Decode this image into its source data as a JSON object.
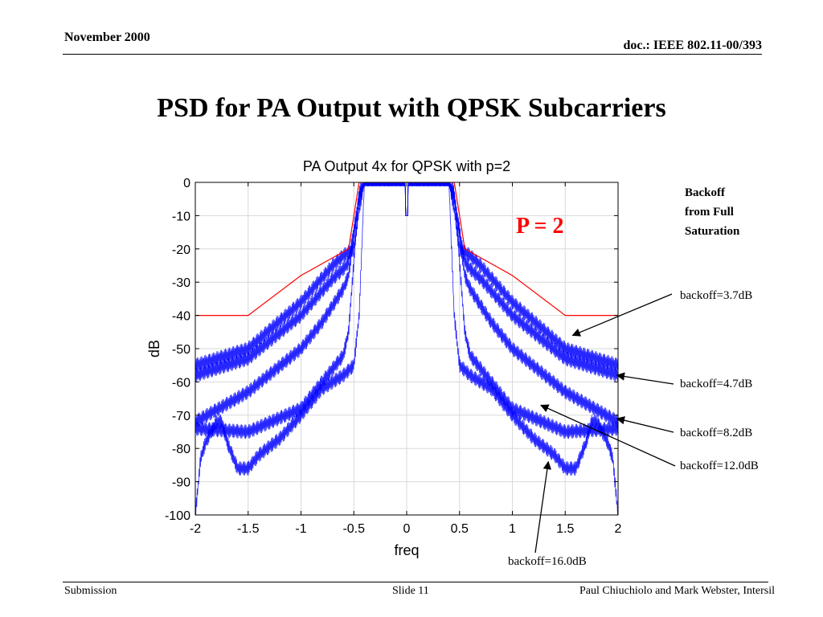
{
  "header": {
    "date": "November 2000",
    "doc": "doc.: IEEE 802.11-00/393"
  },
  "slide_title": "PSD for PA Output with QPSK Subcarriers",
  "footer": {
    "left": "Submission",
    "middle": "Slide 11",
    "right": "Paul Chiuchiolo and Mark Webster, Intersil"
  },
  "legend": {
    "title_lines": [
      "Backoff",
      "from Full",
      "Saturation"
    ],
    "p_note": "P = 2"
  },
  "chart_data": {
    "type": "line",
    "title": "PA Output 4x for QPSK with p=2",
    "xlabel": "freq",
    "ylabel": "dB",
    "xlim": [
      -2,
      2
    ],
    "ylim": [
      -100,
      0
    ],
    "xticks": [
      "-2",
      "-1.5",
      "-1",
      "-0.5",
      "0",
      "0.5",
      "1",
      "1.5",
      "2"
    ],
    "yticks": [
      "0",
      "-10",
      "-20",
      "-30",
      "-40",
      "-50",
      "-60",
      "-70",
      "-80",
      "-90",
      "-100"
    ],
    "grid": true,
    "colors": {
      "mask": "#ff0000",
      "psd": "#0000ff"
    },
    "mask": {
      "x": [
        -2,
        -1.5,
        -1.0,
        -0.55,
        -0.5,
        -0.45,
        0.45,
        0.5,
        0.55,
        1.0,
        1.5,
        2
      ],
      "y": [
        -40,
        -40,
        -28,
        -20,
        -10,
        0,
        0,
        -10,
        -20,
        -28,
        -40,
        -40
      ]
    },
    "series": [
      {
        "name": "backoff=3.7dB",
        "x": [
          -2,
          -1.5,
          -1.0,
          -0.7,
          -0.6,
          -0.5,
          -0.45,
          -0.4,
          0.4,
          0.45,
          0.5,
          0.6,
          0.7,
          1.0,
          1.5,
          2
        ],
        "y": [
          -55,
          -50,
          -36,
          -25,
          -22,
          -20,
          -8,
          0,
          0,
          -8,
          -20,
          -22,
          -25,
          -36,
          -50,
          -55
        ]
      },
      {
        "name": "backoff=4.7dB",
        "x": [
          -2,
          -1.5,
          -1.0,
          -0.7,
          -0.6,
          -0.55,
          -0.45,
          -0.4,
          0.4,
          0.45,
          0.55,
          0.6,
          0.7,
          1.0,
          1.5,
          2
        ],
        "y": [
          -58,
          -53,
          -40,
          -29,
          -26,
          -24,
          -5,
          0,
          0,
          -5,
          -24,
          -26,
          -29,
          -40,
          -53,
          -58
        ]
      },
      {
        "name": "backoff=8.2dB",
        "x": [
          -2,
          -1.5,
          -1.0,
          -0.8,
          -0.6,
          -0.55,
          -0.45,
          -0.4,
          0.4,
          0.45,
          0.55,
          0.6,
          0.8,
          1.0,
          1.5,
          2
        ],
        "y": [
          -72,
          -63,
          -50,
          -42,
          -32,
          -28,
          -4,
          0,
          0,
          -4,
          -28,
          -32,
          -42,
          -50,
          -63,
          -72
        ]
      },
      {
        "name": "backoff=12.0dB",
        "x": [
          -2,
          -1.5,
          -1.0,
          -0.8,
          -0.6,
          -0.55,
          -0.45,
          -0.4,
          0.4,
          0.45,
          0.55,
          0.6,
          0.8,
          1.0,
          1.5,
          2
        ],
        "y": [
          -74,
          -75,
          -68,
          -60,
          -52,
          -45,
          -3,
          0,
          0,
          -3,
          -45,
          -52,
          -60,
          -68,
          -75,
          -74
        ]
      },
      {
        "name": "backoff=16.0dB",
        "x": [
          -2,
          -1.95,
          -1.9,
          -1.85,
          -1.8,
          -1.75,
          -1.7,
          -1.6,
          -1.5,
          -1.4,
          -1.2,
          -1.0,
          -0.8,
          -0.6,
          -0.5,
          -0.45,
          -0.4,
          0.4,
          0.45,
          0.5,
          0.6,
          0.8,
          1.0,
          1.2,
          1.4,
          1.5,
          1.6,
          1.7,
          1.75,
          1.8,
          1.85,
          1.9,
          1.95,
          2
        ],
        "y": [
          -100,
          -83,
          -78,
          -75,
          -72,
          -72,
          -78,
          -86,
          -86,
          -82,
          -77,
          -70,
          -62,
          -58,
          -55,
          -40,
          0,
          0,
          -40,
          -55,
          -58,
          -62,
          -70,
          -77,
          -82,
          -86,
          -86,
          -78,
          -72,
          -72,
          -75,
          -78,
          -83,
          -100
        ]
      }
    ]
  }
}
